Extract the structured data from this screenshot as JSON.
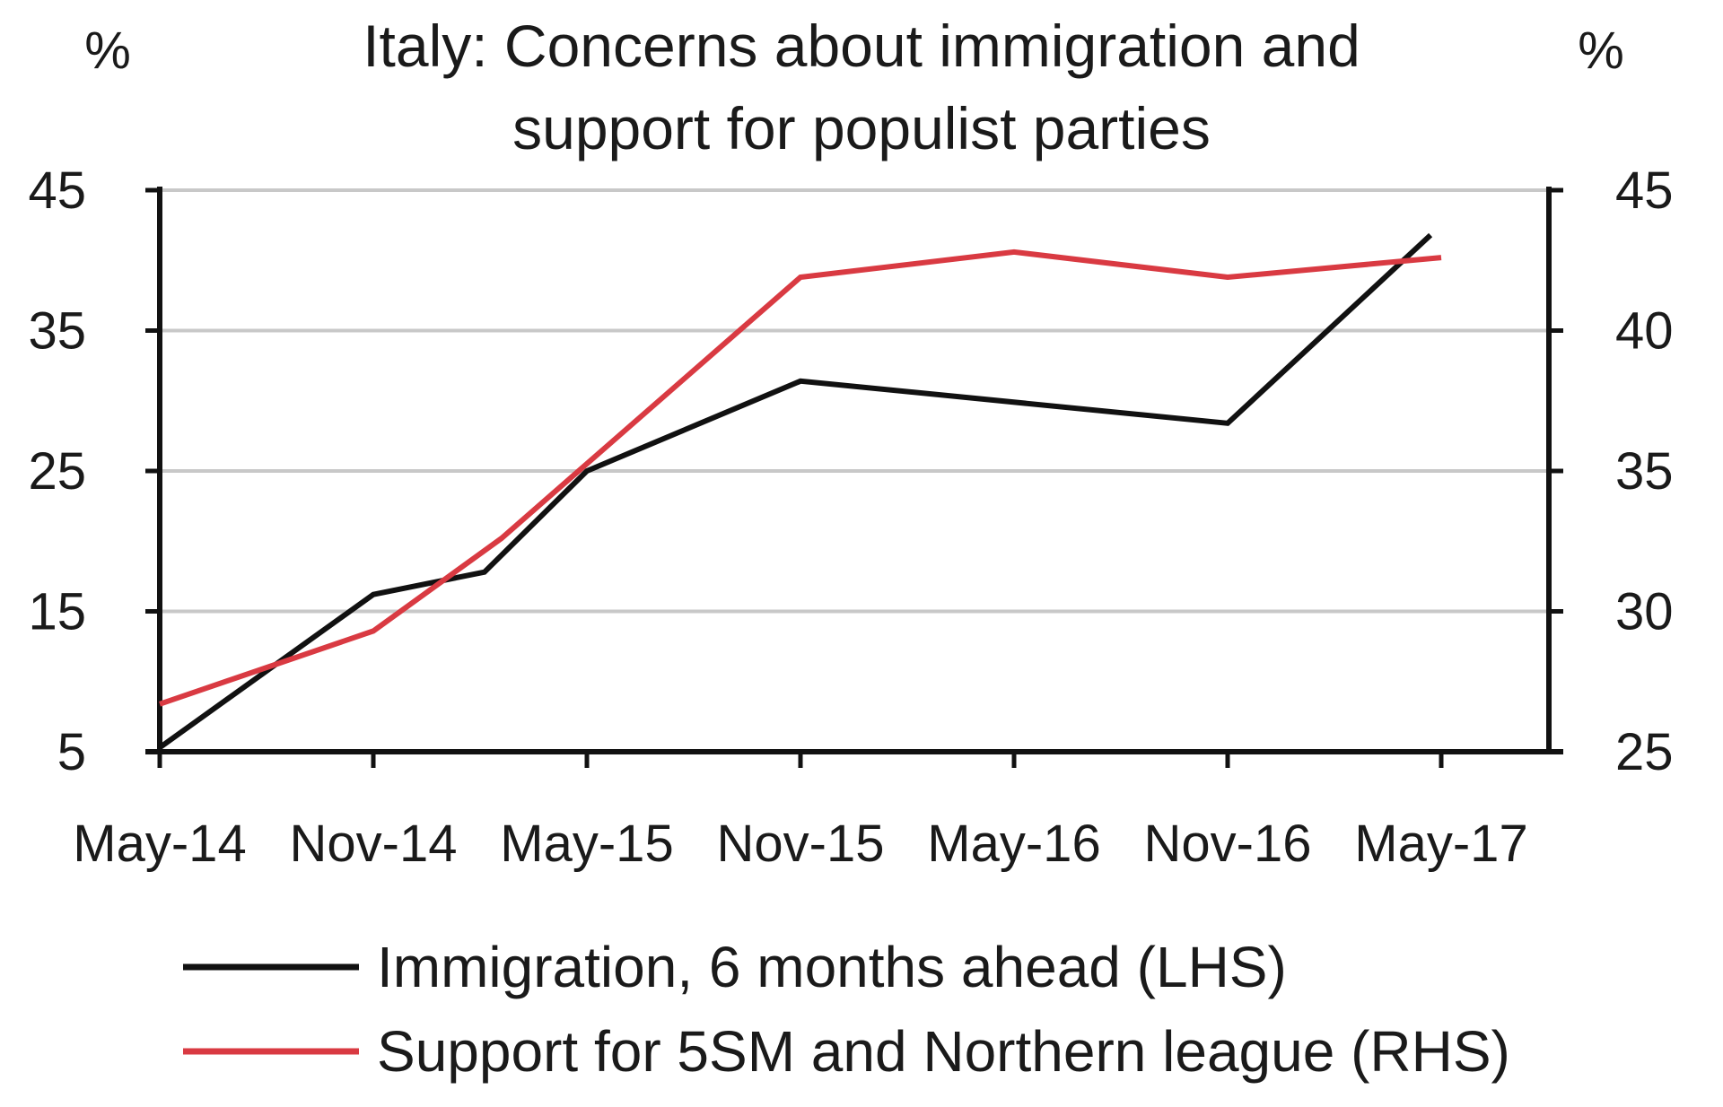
{
  "chart_data": {
    "type": "line",
    "title_lines": [
      "Italy: Concerns about immigration and",
      "support for populist parties"
    ],
    "left_unit": "%",
    "right_unit": "%",
    "categories": [
      "May-14",
      "Nov-14",
      "May-15",
      "Nov-15",
      "May-16",
      "Nov-16",
      "May-17"
    ],
    "y_left": {
      "ylim": [
        5,
        45
      ],
      "ticks": [
        "45",
        "35",
        "25",
        "15",
        "5"
      ]
    },
    "y_right": {
      "ylim": [
        25,
        45
      ],
      "ticks": [
        "45",
        "40",
        "35",
        "30",
        "25"
      ]
    },
    "grid": true,
    "legend_position": "bottom",
    "series": [
      {
        "name": "Immigration, 6 months ahead (LHS)",
        "axis": "left",
        "color": "#111111",
        "points": [
          {
            "x": 0,
            "y": 5.3
          },
          {
            "x": 1,
            "y": 16.2
          },
          {
            "x": 1.52,
            "y": 17.8
          },
          {
            "x": 2,
            "y": 25.0
          },
          {
            "x": 3,
            "y": 31.4
          },
          {
            "x": 5,
            "y": 28.4
          },
          {
            "x": 5.95,
            "y": 41.8
          }
        ]
      },
      {
        "name": "Support for 5SM and Northern league (RHS)",
        "axis": "right",
        "color": "#d93a42",
        "points": [
          {
            "x": 0,
            "y": 26.7
          },
          {
            "x": 1,
            "y": 29.3
          },
          {
            "x": 1.6,
            "y": 32.6
          },
          {
            "x": 3,
            "y": 41.9
          },
          {
            "x": 4,
            "y": 42.8
          },
          {
            "x": 5,
            "y": 41.9
          },
          {
            "x": 6,
            "y": 42.6
          }
        ]
      }
    ]
  }
}
